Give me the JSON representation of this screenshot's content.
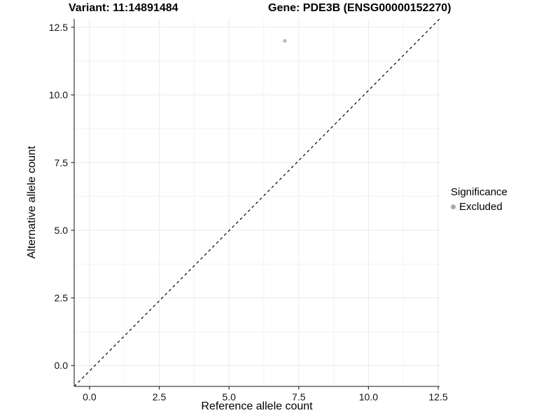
{
  "chart_data": {
    "type": "scatter",
    "title_left": "Variant: 11:14891484",
    "title_right": "Gene: PDE3B (ENSG00000152270)",
    "xlabel": "Reference allele count",
    "ylabel": "Alternative allele count",
    "xlim": [
      -0.55,
      12.55
    ],
    "ylim": [
      -0.77,
      12.81
    ],
    "x_ticks": [
      0,
      2.5,
      5,
      7.5,
      10,
      12.5
    ],
    "y_ticks": [
      0,
      2.5,
      5,
      7.5,
      10,
      12.5
    ],
    "x_tick_labels": [
      "0.0",
      "2.5",
      "5.0",
      "7.5",
      "10.0",
      "12.5"
    ],
    "y_tick_labels": [
      "0.0",
      "2.5",
      "5.0",
      "7.5",
      "10.0",
      "12.5"
    ],
    "x_minor_ticks": [
      1.25,
      3.75,
      6.25,
      8.75,
      11.25
    ],
    "y_minor_ticks": [
      1.25,
      3.75,
      6.25,
      8.75,
      11.25
    ],
    "grid": true,
    "series": [
      {
        "name": "Excluded",
        "color": "#bcbcbc",
        "points": [
          {
            "x": 7,
            "y": 12
          }
        ]
      }
    ],
    "reference_line": {
      "equation": "y = x",
      "style": "dashed",
      "color": "#000000"
    },
    "legend": {
      "title": "Significance",
      "position": "right",
      "items": [
        {
          "label": "Excluded",
          "color": "#a9a9a9"
        }
      ]
    },
    "colors": {
      "axis_line": "#474747",
      "tick_mark": "#333333",
      "grid_major": "#e9e9e9",
      "grid_minor": "#f3f3f3",
      "tick_text": "#121212",
      "background": "#ffffff"
    }
  }
}
